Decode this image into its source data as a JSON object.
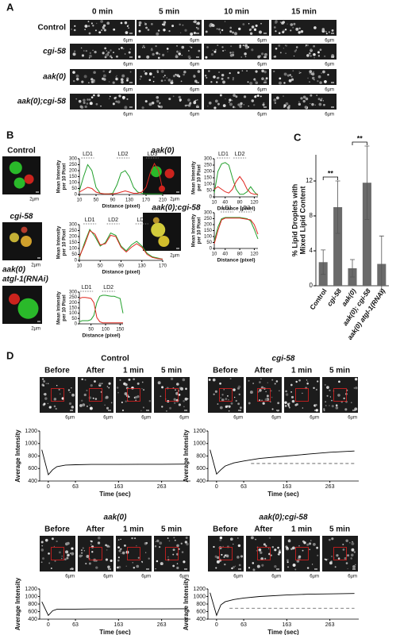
{
  "panels": {
    "A": {
      "label": "A",
      "columns": [
        "0 min",
        "5 min",
        "10 min",
        "15 min"
      ],
      "rows": [
        "Control",
        "cgi-58",
        "aak(0)",
        "aak(0);cgi-58"
      ],
      "scale_bar": "6µm"
    },
    "B": {
      "label": "B",
      "scale_bar": "2µm",
      "images": [
        {
          "title": [
            "Control"
          ]
        },
        {
          "title": [
            "cgi-58"
          ]
        },
        {
          "title": [
            "aak(0)",
            "atgl-1(RNAi)"
          ]
        },
        {
          "title": [
            "aak(0)"
          ]
        },
        {
          "title": [
            "aak(0);cgi-58"
          ]
        }
      ]
    },
    "C": {
      "label": "C"
    },
    "D": {
      "label": "D",
      "frames": [
        "Before",
        "After",
        "1 min",
        "5 min"
      ],
      "scale_bar": "6µm",
      "groups": [
        {
          "title": "Control"
        },
        {
          "title": "cgi-58"
        },
        {
          "title": "aak(0)"
        },
        {
          "title": "aak(0);cgi-58"
        }
      ]
    }
  },
  "chart_data": [
    {
      "type": "line",
      "x_label": "Distance (pixel)",
      "y_label": [
        "Mean Intensity",
        "per 10 Pixel"
      ],
      "xlim": [
        10,
        210
      ],
      "ylim": [
        0,
        300
      ],
      "xticks": [
        10,
        50,
        90,
        130,
        170,
        210
      ],
      "yticks": [
        0,
        50,
        100,
        150,
        200,
        250,
        300
      ],
      "x": [
        10,
        20,
        30,
        40,
        50,
        60,
        70,
        80,
        90,
        100,
        110,
        120,
        130,
        140,
        150,
        160,
        170,
        180,
        190,
        200,
        210
      ],
      "series": [
        {
          "color": "#22a02c",
          "values": [
            30,
            150,
            250,
            200,
            60,
            10,
            5,
            5,
            10,
            80,
            180,
            200,
            150,
            60,
            20,
            10,
            5,
            5,
            5,
            5,
            5
          ]
        },
        {
          "color": "#e0261f",
          "values": [
            20,
            40,
            60,
            50,
            20,
            10,
            5,
            5,
            5,
            10,
            20,
            30,
            20,
            10,
            10,
            20,
            60,
            180,
            260,
            200,
            40
          ]
        }
      ],
      "annotations": [
        {
          "text": "LD1",
          "x": 30
        },
        {
          "text": "LD2",
          "x": 115
        },
        {
          "text": "LD3",
          "x": 185
        }
      ]
    },
    {
      "type": "line",
      "x_label": "Distance (pixel)",
      "y_label": [
        "Mean Intensity",
        "per 10 Pixel"
      ],
      "xlim": [
        10,
        170
      ],
      "ylim": [
        0,
        300
      ],
      "xticks": [
        10,
        50,
        90,
        130,
        170
      ],
      "yticks": [
        0,
        50,
        100,
        150,
        200,
        250,
        300
      ],
      "x": [
        10,
        20,
        30,
        40,
        50,
        60,
        70,
        80,
        90,
        100,
        110,
        120,
        130,
        140,
        150,
        160,
        170
      ],
      "series": [
        {
          "color": "#22a02c",
          "values": [
            20,
            150,
            260,
            200,
            120,
            150,
            230,
            210,
            120,
            80,
            130,
            160,
            120,
            60,
            30,
            20,
            10
          ]
        },
        {
          "color": "#e0261f",
          "values": [
            30,
            130,
            250,
            220,
            130,
            140,
            210,
            200,
            110,
            70,
            110,
            140,
            110,
            50,
            25,
            15,
            10
          ]
        }
      ],
      "annotations": [
        {
          "text": "LD1",
          "x": 30
        },
        {
          "text": "LD2",
          "x": 75
        },
        {
          "text": "LD3",
          "x": 130
        }
      ]
    },
    {
      "type": "line",
      "x_label": "Distance (pixel)",
      "y_label": [
        "Mean Intensity",
        "per 10 Pixel"
      ],
      "xlim": [
        10,
        160
      ],
      "ylim": [
        0,
        300
      ],
      "xticks": [
        50,
        100,
        150
      ],
      "yticks": [
        0,
        50,
        100,
        150,
        200,
        250,
        300
      ],
      "x": [
        10,
        20,
        30,
        40,
        50,
        60,
        70,
        80,
        90,
        100,
        110,
        120,
        130,
        140,
        150,
        160
      ],
      "series": [
        {
          "color": "#22a02c",
          "values": [
            20,
            30,
            30,
            30,
            40,
            80,
            200,
            260,
            270,
            270,
            265,
            260,
            260,
            250,
            240,
            100
          ]
        },
        {
          "color": "#e0261f",
          "values": [
            240,
            250,
            250,
            245,
            240,
            200,
            60,
            20,
            10,
            10,
            10,
            10,
            10,
            10,
            10,
            10
          ]
        }
      ],
      "annotations": [
        {
          "text": "LD1",
          "x": 35
        },
        {
          "text": "LD2",
          "x": 110
        }
      ]
    },
    {
      "type": "line",
      "x_label": "Distance (pixel)",
      "y_label": [
        "Mean Intensity",
        "per 10 Pixel"
      ],
      "xlim": [
        10,
        130
      ],
      "ylim": [
        0,
        300
      ],
      "xticks": [
        10,
        40,
        80,
        120
      ],
      "yticks": [
        0,
        50,
        100,
        150,
        200,
        250,
        300
      ],
      "x": [
        10,
        20,
        30,
        40,
        50,
        60,
        70,
        80,
        90,
        100,
        110,
        120,
        130
      ],
      "series": [
        {
          "color": "#22a02c",
          "values": [
            30,
            200,
            260,
            270,
            250,
            150,
            60,
            20,
            20,
            40,
            80,
            40,
            10
          ]
        },
        {
          "color": "#e0261f",
          "values": [
            60,
            80,
            60,
            40,
            30,
            60,
            120,
            160,
            120,
            60,
            30,
            20,
            20
          ]
        }
      ],
      "annotations": [
        {
          "text": "LD1",
          "x": 35
        },
        {
          "text": "LD2",
          "x": 80
        }
      ]
    },
    {
      "type": "line",
      "x_label": "Distance (pixel)",
      "y_label": [
        "Mean Intensity",
        "per 10 Pixel"
      ],
      "xlim": [
        10,
        130
      ],
      "ylim": [
        0,
        300
      ],
      "xticks": [
        10,
        40,
        80,
        120
      ],
      "yticks": [
        0,
        50,
        100,
        150,
        200,
        250,
        300
      ],
      "x": [
        10,
        20,
        30,
        40,
        50,
        60,
        70,
        80,
        90,
        100,
        110,
        120,
        130
      ],
      "series": [
        {
          "color": "#22a02c",
          "values": [
            60,
            180,
            250,
            260,
            260,
            260,
            260,
            260,
            255,
            250,
            230,
            160,
            80
          ]
        },
        {
          "color": "#e0261f",
          "values": [
            40,
            150,
            240,
            255,
            255,
            255,
            255,
            255,
            250,
            245,
            240,
            200,
            120
          ]
        }
      ],
      "annotations": [
        {
          "text": "LD1",
          "x": 45
        },
        {
          "text": "LD2",
          "x": 95
        }
      ]
    },
    {
      "type": "bar",
      "y_label": [
        "% Lipid Droplets with",
        "Mixed Lipid Content"
      ],
      "categories": [
        "Control",
        "cgi-58",
        "aak(0)",
        "aak(0); cgi-58",
        "aak(0) atgl-1(RNAi)"
      ],
      "values": [
        2.7,
        9,
        2,
        11.8,
        2.5
      ],
      "errors": [
        1.4,
        3,
        1,
        4.2,
        3.2
      ],
      "color": "#6a6a6a",
      "ylim": [
        0,
        15
      ],
      "yticks": [
        0,
        4,
        8,
        12
      ],
      "annotations": [
        {
          "text": "**",
          "between": [
            0,
            1
          ]
        },
        {
          "text": "**",
          "between": [
            2,
            3
          ]
        }
      ]
    },
    {
      "type": "line",
      "x_label": "Time (sec)",
      "y_label": [
        "Average Intensity"
      ],
      "xlim": [
        -20,
        330
      ],
      "ylim": [
        400,
        1200
      ],
      "xticks": [
        0,
        63,
        163,
        263
      ],
      "yticks": [
        400,
        600,
        800,
        1000,
        1200
      ],
      "x": [
        -15,
        0,
        10,
        20,
        40,
        63,
        100,
        163,
        213,
        263,
        320
      ],
      "series": [
        {
          "color": "#000000",
          "values": [
            900,
            500,
            580,
            630,
            655,
            660,
            665,
            665,
            668,
            668,
            670
          ]
        }
      ]
    },
    {
      "type": "line",
      "x_label": "Time (sec)",
      "y_label": [
        "Average Intensity"
      ],
      "xlim": [
        -20,
        330
      ],
      "ylim": [
        400,
        1200
      ],
      "xticks": [
        0,
        63,
        163,
        263
      ],
      "yticks": [
        400,
        600,
        800,
        1000,
        1200
      ],
      "x": [
        -15,
        0,
        10,
        20,
        40,
        63,
        100,
        163,
        213,
        263,
        320
      ],
      "series": [
        {
          "color": "#000000",
          "values": [
            900,
            510,
            580,
            640,
            690,
            720,
            760,
            800,
            830,
            860,
            880
          ]
        }
      ],
      "reference": {
        "y": 680,
        "x": [
          80,
          320
        ]
      }
    },
    {
      "type": "line",
      "x_label": "Time (sec)",
      "y_label": [
        "Average Intensity"
      ],
      "xlim": [
        -20,
        330
      ],
      "ylim": [
        400,
        1200
      ],
      "xticks": [
        0,
        63,
        163,
        263
      ],
      "yticks": [
        400,
        600,
        800,
        1000,
        1200
      ],
      "x": [
        -15,
        0,
        10,
        20,
        40,
        63,
        100,
        163,
        213,
        263,
        320
      ],
      "series": [
        {
          "color": "#000000",
          "values": [
            860,
            500,
            620,
            660,
            665,
            665,
            670,
            670,
            672,
            672,
            675
          ]
        }
      ]
    },
    {
      "type": "line",
      "x_label": "Time (sec)",
      "y_label": [
        "Average Intensity"
      ],
      "xlim": [
        -20,
        330
      ],
      "ylim": [
        400,
        1200
      ],
      "xticks": [
        0,
        63,
        163,
        263
      ],
      "yticks": [
        400,
        600,
        800,
        1000,
        1200
      ],
      "x": [
        -15,
        0,
        10,
        20,
        40,
        63,
        100,
        163,
        213,
        263,
        320
      ],
      "series": [
        {
          "color": "#000000",
          "values": [
            1100,
            500,
            780,
            860,
            920,
            960,
            1000,
            1040,
            1060,
            1070,
            1080
          ]
        }
      ],
      "reference": {
        "y": 690,
        "x": [
          30,
          320
        ]
      }
    }
  ]
}
